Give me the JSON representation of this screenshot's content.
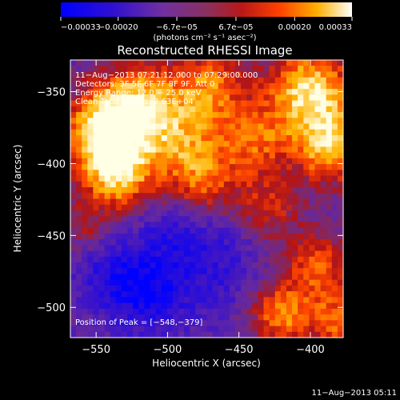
{
  "chart_data": {
    "type": "heatmap",
    "title": "Reconstructed RHESSI Image",
    "xlabel": "Heliocentric X (arcsec)",
    "ylabel": "Heliocentric Y (arcsec)",
    "xlim": [
      -568,
      -377
    ],
    "ylim": [
      -521,
      -328
    ],
    "x_ticks": [
      -550,
      -500,
      -450,
      -400
    ],
    "x_tick_labels": [
      "−550",
      "−500",
      "−450",
      "−400"
    ],
    "y_ticks": [
      -350,
      -400,
      -450,
      -500
    ],
    "y_tick_labels": [
      "−350",
      "−400",
      "−450",
      "−500"
    ],
    "colorbar": {
      "min": -0.00033,
      "max": 0.00033,
      "ticks": [
        -0.00033,
        -0.0002,
        -6.7e-05,
        6.7e-05,
        0.0002,
        0.00033
      ],
      "tick_labels": [
        "−0.00033",
        "−0.00020",
        "−6.7e−05",
        "6.7e−05",
        "0.00020",
        "0.00033"
      ],
      "unit_label": "(photons cm⁻² s⁻¹ asec⁻²)",
      "colormap": "blue-purple-red-yellow-white"
    },
    "annotations": [
      "11−Aug−2013 07:21:12.000 to 07:29:00.000",
      "Detectors: 3F 5F 6F 7F 8F 9F, Att 0",
      "Energy Range: 12.0 − 25.0 keV",
      "Clean    Total counts: 2.63E+04"
    ],
    "peak_label": "Position of Peak = [−548,−379]",
    "peak": [
      -548,
      -379
    ]
  },
  "footer": {
    "timestamp": "11−Aug−2013 05:11"
  },
  "colors": {
    "background": "#000000",
    "text": "#ffffff",
    "low": "#0000ff",
    "mid": "#6a2a9a",
    "high": "#ffffff"
  }
}
